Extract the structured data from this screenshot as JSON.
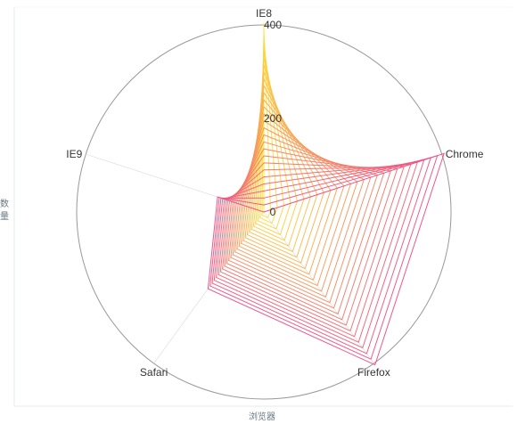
{
  "chart_data": {
    "type": "radar",
    "indicators": [
      "IE8",
      "Chrome",
      "Firefox",
      "Safari",
      "IE9"
    ],
    "max": 400,
    "tick_labels": [
      "400",
      "200",
      "0"
    ],
    "xlabel": "浏览器",
    "ylabel": "数量",
    "series_count": 28,
    "series_first": [
      405,
      0,
      0,
      0,
      0
    ],
    "series_last": [
      0,
      405,
      404,
      203,
      104
    ],
    "colors": {
      "start": "#ffe833",
      "end": "#ee4c86",
      "axis_line": "#d9d9d9",
      "outer_circle": "#999999",
      "frame": "#e6e9ef",
      "side_label": "#6a7985",
      "text": "#333333"
    }
  }
}
